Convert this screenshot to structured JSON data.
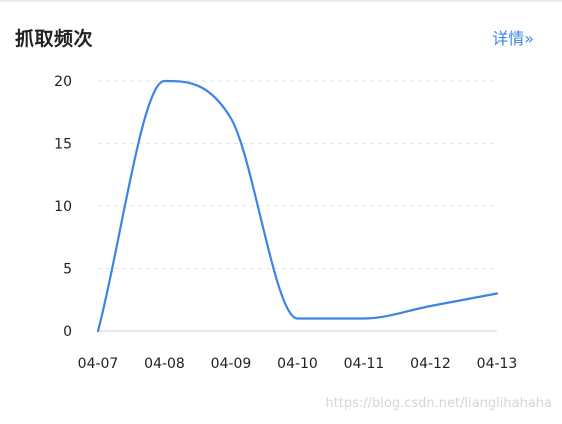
{
  "header": {
    "title": "抓取频次",
    "details_label": "详情»"
  },
  "watermark": "https://blog.csdn.net/lianglihahaha",
  "colors": {
    "line": "#3d84e4",
    "grid": "#e2e2e2",
    "axis": "#cfcfcf",
    "tick_text": "#222222",
    "link": "#3a86e6"
  },
  "chart_data": {
    "type": "line",
    "smooth": true,
    "x": [
      "04-07",
      "04-08",
      "04-09",
      "04-10",
      "04-11",
      "04-12",
      "04-13"
    ],
    "series": [
      {
        "values": [
          0,
          20,
          17,
          1,
          1,
          2,
          3
        ]
      }
    ],
    "ylim": [
      0,
      20
    ],
    "yticks": [
      0,
      5,
      10,
      15,
      20
    ],
    "grid": true,
    "grid_style": "dashed",
    "legend": "none"
  }
}
